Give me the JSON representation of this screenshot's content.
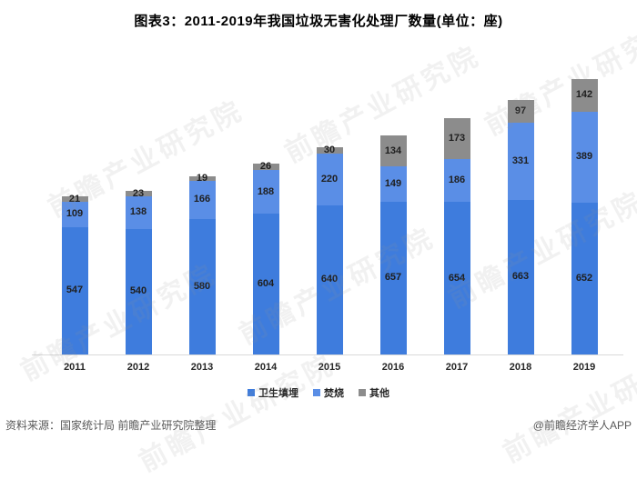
{
  "title": "图表3：2011-2019年我国垃圾无害化处理厂数量(单位：座)",
  "watermark": {
    "text": "前瞻产业研究院"
  },
  "chart_data": {
    "type": "bar",
    "stacked": true,
    "title": "图表3：2011-2019年我国垃圾无害化处理厂数量(单位：座)",
    "unit": "座",
    "categories": [
      "2011",
      "2012",
      "2013",
      "2014",
      "2015",
      "2016",
      "2017",
      "2018",
      "2019"
    ],
    "series": [
      {
        "name": "卫生填埋",
        "color": "#3e7cdd",
        "values": [
          547,
          540,
          580,
          604,
          640,
          657,
          654,
          663,
          652
        ]
      },
      {
        "name": "焚烧",
        "color": "#5a8ee6",
        "values": [
          109,
          138,
          166,
          188,
          220,
          149,
          186,
          331,
          389
        ]
      },
      {
        "name": "其他",
        "color": "#8c8c8c",
        "values": [
          21,
          23,
          19,
          26,
          30,
          134,
          173,
          97,
          142
        ]
      }
    ],
    "totals": [
      677,
      701,
      765,
      818,
      890,
      940,
      1013,
      1091,
      1183
    ],
    "value_labels": true,
    "grid": false,
    "legend_position": "bottom",
    "xlabel": "",
    "ylabel": "",
    "ylim": [
      0,
      1300
    ]
  },
  "footer": {
    "source": "资料来源：国家统计局 前瞻产业研究院整理",
    "credit": "@前瞻经济学人APP"
  }
}
